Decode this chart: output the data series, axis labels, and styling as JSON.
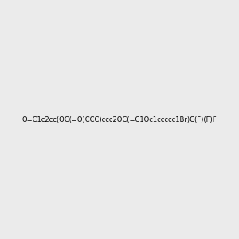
{
  "smiles": "O=C1c2cc(OC(=O)CCC)ccc2OC(=C1Oc1ccccc1Br)C(F)(F)F",
  "background_color": "#ebebeb",
  "figure_size": [
    3.0,
    3.0
  ],
  "dpi": 100,
  "title": "",
  "bond_color_aromatic": "#4a7a6a",
  "bond_color_single": "#4a7a6a",
  "atom_color_O": "#ff0000",
  "atom_color_F": "#cc44cc",
  "atom_color_Br": "#cc8800",
  "atom_color_C": "#4a7a6a"
}
